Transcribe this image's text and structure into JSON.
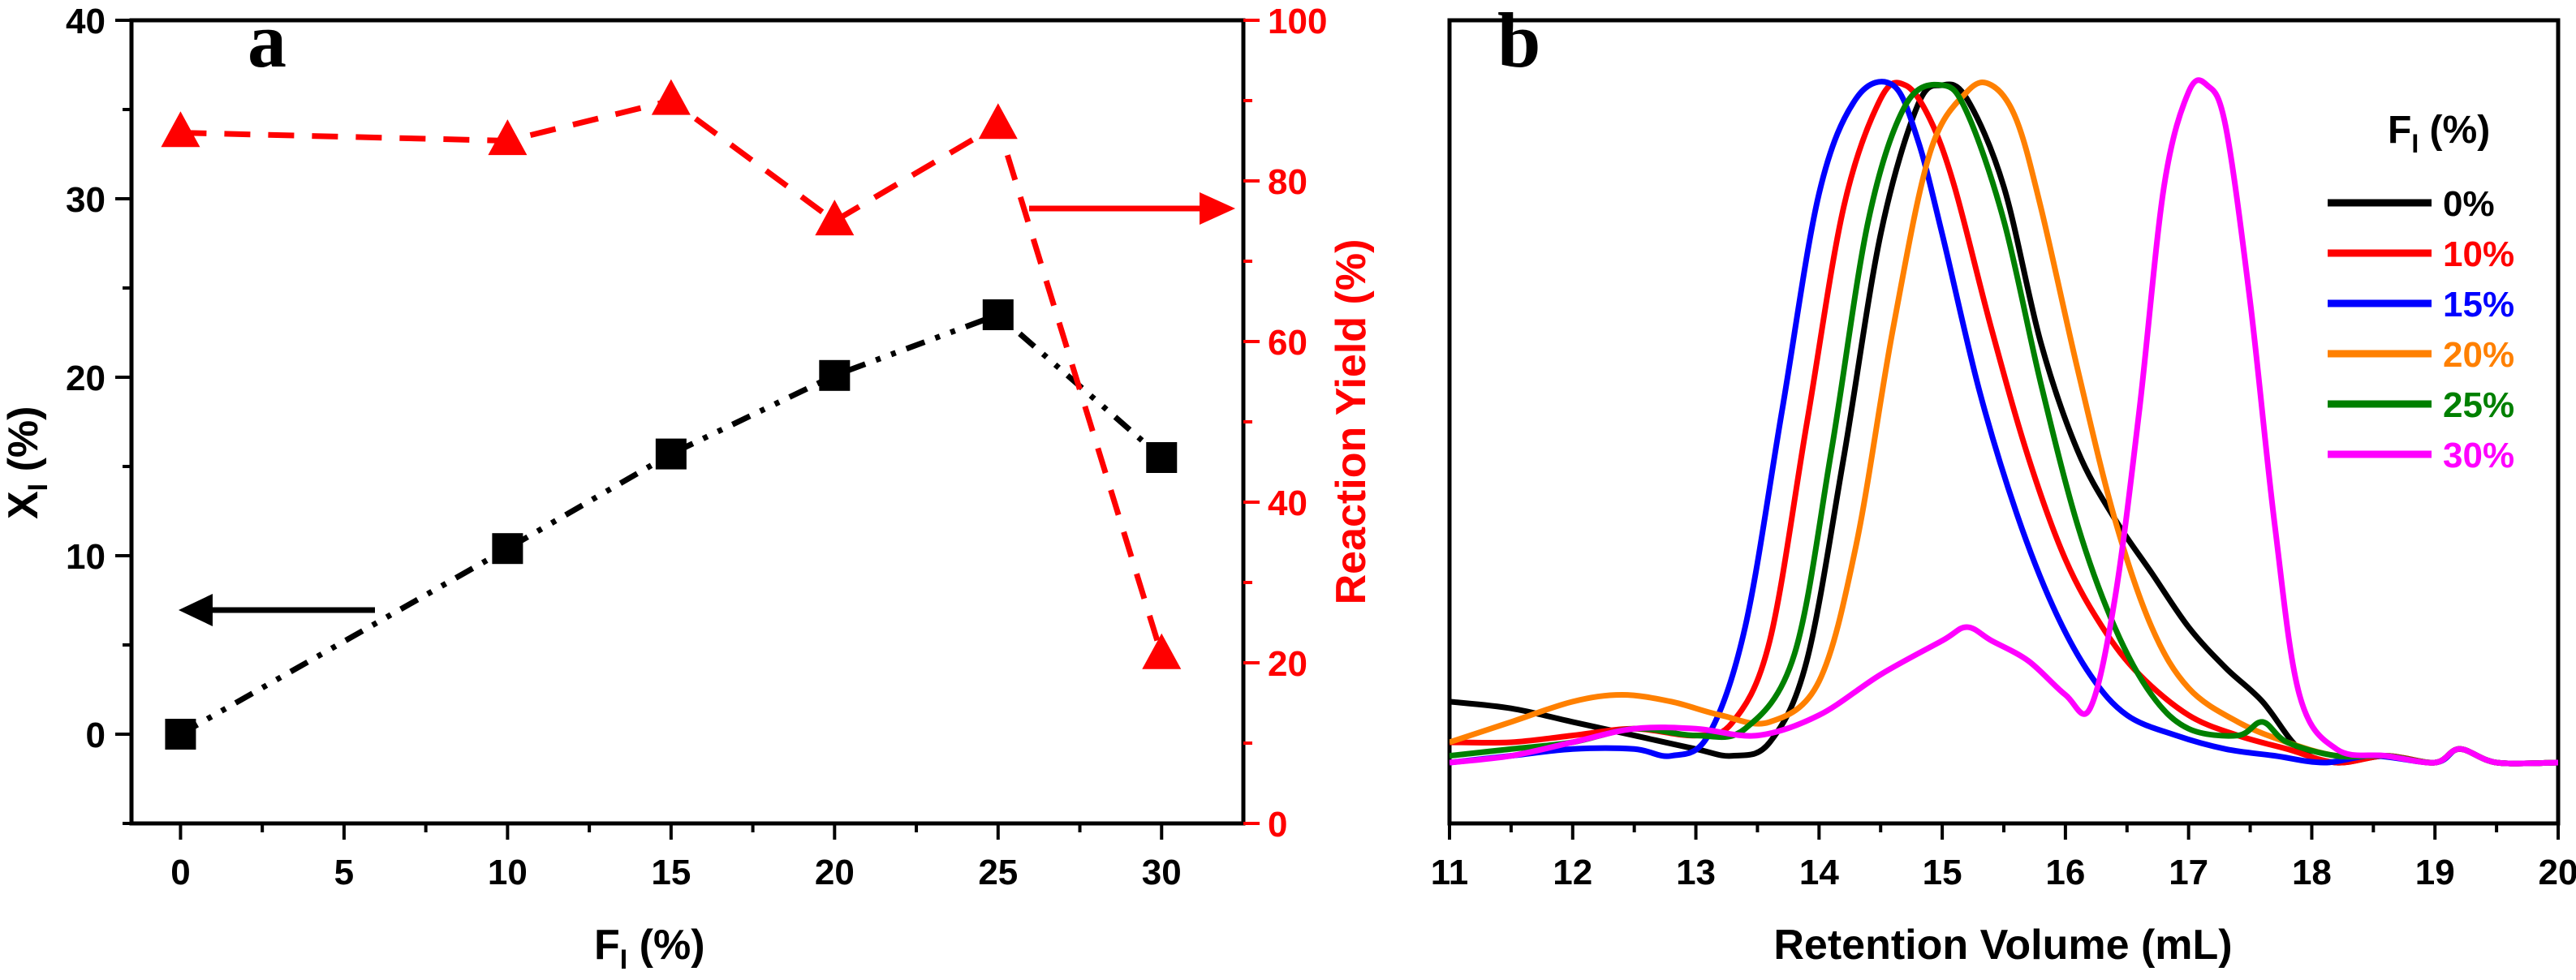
{
  "chart_data": [
    {
      "panel": "a",
      "type": "line",
      "xlabel": "F",
      "xlabel_sub": "I",
      "xlabel_tail": " (%)",
      "ylabel": "X",
      "ylabel_sub": "I",
      "ylabel_tail": " (%)",
      "y2label": "Reaction Yield (%)",
      "xlim": [
        -1.5,
        32.5
      ],
      "ylim": [
        -5,
        40
      ],
      "y2lim": [
        0,
        100
      ],
      "xticks": [
        0,
        5,
        10,
        15,
        20,
        25,
        30
      ],
      "yticks": [
        0,
        10,
        20,
        30,
        40
      ],
      "y2ticks": [
        0,
        20,
        40,
        60,
        80,
        100
      ],
      "series": [
        {
          "name": "X_I",
          "axis": "left",
          "color": "#000000",
          "marker": "square",
          "linestyle": "dash-dot-dot",
          "x": [
            0,
            10,
            15,
            20,
            25,
            30
          ],
          "values": [
            0,
            10.4,
            15.7,
            20.1,
            23.5,
            15.5
          ]
        },
        {
          "name": "Reaction Yield",
          "axis": "right",
          "color": "#ff0000",
          "marker": "triangle",
          "linestyle": "dash",
          "x": [
            0,
            10,
            15,
            20,
            25,
            30
          ],
          "values": [
            86,
            85,
            90,
            75,
            87,
            21
          ]
        }
      ],
      "annotations": [
        {
          "type": "arrow",
          "direction": "left",
          "points_to": "left axis",
          "color": "#000000"
        },
        {
          "type": "arrow",
          "direction": "right",
          "points_to": "right axis",
          "color": "#ff0000"
        }
      ]
    },
    {
      "panel": "b",
      "type": "line",
      "xlabel": "Retention Volume (mL)",
      "ylabel": "",
      "xlim": [
        11,
        20
      ],
      "xticks": [
        11,
        12,
        13,
        14,
        15,
        16,
        17,
        18,
        19,
        20
      ],
      "y_scale": "normalized intensity (no axis labels)",
      "ylim": [
        0,
        1.05
      ],
      "legend_title": "F",
      "legend_title_sub": "I",
      "legend_title_tail": " (%)",
      "legend_position": "right",
      "series": [
        {
          "name": "0%",
          "color": "#000000",
          "x": [
            11.0,
            11.5,
            12.0,
            12.5,
            13.0,
            13.3,
            13.6,
            13.9,
            14.2,
            14.5,
            14.8,
            15.0,
            15.2,
            15.5,
            15.8,
            16.1,
            16.4,
            16.7,
            17.0,
            17.3,
            17.6,
            17.9,
            18.2,
            18.6,
            19.0,
            19.2,
            19.5,
            20.0
          ],
          "values": [
            0.09,
            0.08,
            0.06,
            0.04,
            0.02,
            0.01,
            0.03,
            0.15,
            0.45,
            0.78,
            0.97,
            1.0,
            0.98,
            0.85,
            0.62,
            0.46,
            0.36,
            0.28,
            0.2,
            0.14,
            0.09,
            0.02,
            0.0,
            0.01,
            0.0,
            0.02,
            0.0,
            0.0
          ]
        },
        {
          "name": "10%",
          "color": "#ff0000",
          "x": [
            11.0,
            11.5,
            12.0,
            12.5,
            13.0,
            13.3,
            13.6,
            13.9,
            14.2,
            14.5,
            14.7,
            14.9,
            15.1,
            15.4,
            15.7,
            16.0,
            16.3,
            16.6,
            17.0,
            17.4,
            17.8,
            18.2,
            18.6,
            19.0,
            19.2,
            19.5,
            20.0
          ],
          "values": [
            0.03,
            0.03,
            0.04,
            0.05,
            0.04,
            0.06,
            0.18,
            0.5,
            0.82,
            0.98,
            1.0,
            0.95,
            0.85,
            0.64,
            0.45,
            0.3,
            0.2,
            0.13,
            0.07,
            0.04,
            0.02,
            0.0,
            0.01,
            0.0,
            0.02,
            0.0,
            0.0
          ]
        },
        {
          "name": "15%",
          "color": "#0000ff",
          "x": [
            11.0,
            11.5,
            12.0,
            12.5,
            12.8,
            13.1,
            13.4,
            13.7,
            14.0,
            14.3,
            14.6,
            14.8,
            15.0,
            15.3,
            15.6,
            15.9,
            16.2,
            16.5,
            16.9,
            17.3,
            17.7,
            18.1,
            18.5,
            19.0,
            19.2,
            19.5,
            20.0
          ],
          "values": [
            0.0,
            0.01,
            0.02,
            0.02,
            0.01,
            0.04,
            0.2,
            0.52,
            0.84,
            0.98,
            1.0,
            0.92,
            0.78,
            0.55,
            0.37,
            0.23,
            0.13,
            0.07,
            0.04,
            0.02,
            0.01,
            0.0,
            0.01,
            0.0,
            0.02,
            0.0,
            0.0
          ]
        },
        {
          "name": "20%",
          "color": "#ff8000",
          "x": [
            11.0,
            11.5,
            12.0,
            12.4,
            12.8,
            13.2,
            13.6,
            14.0,
            14.3,
            14.6,
            14.9,
            15.2,
            15.4,
            15.6,
            15.8,
            16.1,
            16.4,
            16.7,
            17.0,
            17.4,
            17.8,
            18.2,
            18.6,
            19.0,
            19.2,
            19.5,
            20.0
          ],
          "values": [
            0.03,
            0.06,
            0.09,
            0.1,
            0.09,
            0.07,
            0.06,
            0.12,
            0.32,
            0.64,
            0.9,
            0.99,
            1.0,
            0.95,
            0.82,
            0.58,
            0.36,
            0.2,
            0.11,
            0.06,
            0.03,
            0.01,
            0.01,
            0.0,
            0.02,
            0.0,
            0.0
          ]
        },
        {
          "name": "25%",
          "color": "#008000",
          "x": [
            11.0,
            11.5,
            12.0,
            12.5,
            13.0,
            13.4,
            13.8,
            14.1,
            14.4,
            14.7,
            15.0,
            15.2,
            15.5,
            15.8,
            16.1,
            16.4,
            16.7,
            17.0,
            17.4,
            17.6,
            17.8,
            18.2,
            18.6,
            19.0,
            19.2,
            19.5,
            20.0
          ],
          "values": [
            0.01,
            0.02,
            0.03,
            0.05,
            0.04,
            0.05,
            0.16,
            0.46,
            0.8,
            0.97,
            1.0,
            0.96,
            0.8,
            0.56,
            0.35,
            0.2,
            0.1,
            0.05,
            0.04,
            0.06,
            0.03,
            0.01,
            0.01,
            0.0,
            0.02,
            0.0,
            0.0
          ]
        },
        {
          "name": "30%",
          "color": "#ff00ff",
          "x": [
            11.0,
            11.5,
            12.0,
            12.5,
            13.0,
            13.5,
            14.0,
            14.5,
            15.0,
            15.2,
            15.4,
            15.7,
            16.0,
            16.2,
            16.4,
            16.6,
            16.8,
            17.0,
            17.15,
            17.3,
            17.5,
            17.7,
            17.9,
            18.2,
            18.6,
            19.0,
            19.2,
            19.5,
            20.0
          ],
          "values": [
            0.0,
            0.01,
            0.03,
            0.05,
            0.05,
            0.04,
            0.07,
            0.13,
            0.18,
            0.2,
            0.18,
            0.15,
            0.1,
            0.08,
            0.24,
            0.52,
            0.85,
            0.99,
            1.0,
            0.94,
            0.68,
            0.35,
            0.1,
            0.02,
            0.01,
            0.0,
            0.02,
            0.0,
            0.0
          ]
        }
      ]
    }
  ]
}
